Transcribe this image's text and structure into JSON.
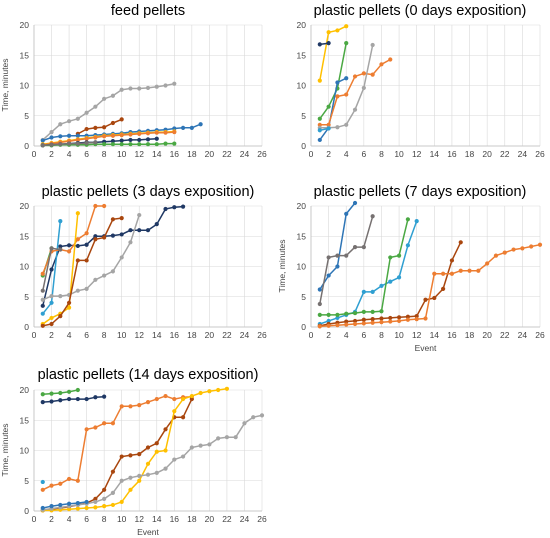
{
  "colors": {
    "gray": "#a5a5a5",
    "yellow": "#ffc000",
    "blue": "#2e75b6",
    "green": "#4aa843",
    "navy": "#1f3864",
    "orange": "#ed7d31",
    "brown": "#a9460e",
    "lightblue": "#2f9fd1",
    "darkgray": "#767171"
  },
  "chart_data": [
    {
      "type": "line",
      "title": "feed pellets",
      "xlabel": "",
      "ylabel": "Time, minutes",
      "xlim": [
        0,
        26
      ],
      "ylim": [
        0,
        20
      ],
      "xticks": [
        0,
        2,
        4,
        6,
        8,
        10,
        12,
        14,
        16,
        18,
        20,
        22,
        24,
        26
      ],
      "yticks": [
        0,
        5,
        10,
        15,
        20
      ],
      "series": [
        {
          "color": "gray",
          "x": [
            1,
            2,
            3,
            4,
            5,
            6,
            7,
            8,
            9,
            10,
            11,
            12,
            13,
            14,
            15,
            16
          ],
          "y": [
            1.0,
            2.3,
            3.6,
            4.1,
            4.5,
            5.5,
            6.5,
            7.8,
            8.3,
            9.3,
            9.5,
            9.5,
            9.6,
            9.8,
            10.0,
            10.3
          ]
        },
        {
          "color": "brown",
          "x": [
            5,
            6,
            7,
            8,
            9,
            10
          ],
          "y": [
            2.0,
            2.8,
            3.0,
            3.1,
            3.8,
            4.4
          ]
        },
        {
          "color": "blue",
          "x": [
            1,
            2,
            3,
            4,
            5,
            6,
            7,
            8,
            9,
            10,
            11,
            12,
            13,
            14,
            15,
            16,
            17,
            18,
            19
          ],
          "y": [
            0.9,
            1.4,
            1.6,
            1.7,
            1.7,
            1.7,
            1.8,
            1.9,
            2.0,
            2.1,
            2.3,
            2.4,
            2.5,
            2.6,
            2.7,
            2.9,
            3.0,
            3.0,
            3.6
          ]
        },
        {
          "color": "yellow",
          "x": [
            1,
            2,
            3,
            4,
            5,
            6,
            7,
            8,
            9,
            10,
            11,
            12,
            13,
            14,
            15,
            16
          ],
          "y": [
            0.3,
            0.5,
            0.7,
            0.9,
            1.1,
            1.3,
            1.5,
            1.7,
            1.8,
            1.9,
            2.0,
            2.1,
            2.2,
            2.3,
            2.3,
            2.4
          ]
        },
        {
          "color": "orange",
          "x": [
            1,
            2,
            3,
            4,
            5,
            6,
            7,
            8,
            9,
            10,
            11,
            12,
            13,
            14,
            15,
            16
          ],
          "y": [
            0.2,
            0.4,
            0.6,
            0.8,
            1.0,
            1.2,
            1.4,
            1.6,
            1.7,
            1.8,
            1.9,
            2.0,
            2.1,
            2.2,
            2.2,
            2.3
          ]
        },
        {
          "color": "navy",
          "x": [
            1,
            2,
            3,
            4,
            5,
            6,
            7,
            8,
            9,
            10,
            11,
            12,
            13,
            14
          ],
          "y": [
            0.1,
            0.2,
            0.3,
            0.4,
            0.5,
            0.6,
            0.6,
            0.7,
            0.8,
            0.9,
            1.0,
            1.0,
            1.1,
            1.2
          ]
        },
        {
          "color": "green",
          "x": [
            1,
            2,
            3,
            4,
            5,
            6,
            7,
            8,
            9,
            10,
            11,
            12,
            13,
            14,
            15,
            16
          ],
          "y": [
            0.1,
            0.1,
            0.2,
            0.2,
            0.2,
            0.2,
            0.3,
            0.3,
            0.3,
            0.3,
            0.3,
            0.3,
            0.3,
            0.3,
            0.4,
            0.4
          ]
        },
        {
          "color": "darkgray",
          "x": [
            1,
            2,
            3,
            4,
            5,
            6,
            7
          ],
          "y": [
            0.1,
            0.2,
            0.3,
            0.4,
            0.4,
            0.5,
            0.6
          ]
        }
      ]
    },
    {
      "type": "line",
      "title": "plastic pellets (0 days exposition)",
      "xlabel": "",
      "ylabel": "",
      "xlim": [
        0,
        26
      ],
      "ylim": [
        0,
        20
      ],
      "xticks": [
        0,
        2,
        4,
        6,
        8,
        10,
        12,
        14,
        16,
        18,
        20,
        22,
        24,
        26
      ],
      "yticks": [
        0,
        5,
        10,
        15,
        20
      ],
      "series": [
        {
          "color": "yellow",
          "x": [
            1,
            2,
            3,
            4
          ],
          "y": [
            10.8,
            18.8,
            19.1,
            19.8
          ]
        },
        {
          "color": "navy",
          "x": [
            1,
            2
          ],
          "y": [
            16.8,
            17.0
          ]
        },
        {
          "color": "green",
          "x": [
            1,
            2,
            3,
            4
          ],
          "y": [
            4.5,
            6.5,
            9.5,
            17.0
          ]
        },
        {
          "color": "blue",
          "x": [
            1,
            2,
            3,
            4
          ],
          "y": [
            1.0,
            3.0,
            10.5,
            11.2
          ]
        },
        {
          "color": "orange",
          "x": [
            1,
            2,
            3,
            4,
            5,
            6,
            7,
            8,
            9
          ],
          "y": [
            3.5,
            3.5,
            8.2,
            8.5,
            11.5,
            12.0,
            11.8,
            13.5,
            14.3
          ]
        },
        {
          "color": "gray",
          "x": [
            1,
            2,
            3,
            4,
            5,
            6,
            7
          ],
          "y": [
            3.0,
            3.0,
            3.1,
            3.5,
            6.0,
            9.6,
            16.7
          ]
        },
        {
          "color": "lightblue",
          "x": [
            1,
            2
          ],
          "y": [
            2.6,
            2.9
          ]
        }
      ]
    },
    {
      "type": "line",
      "title": "plastic pellets (3 days exposition)",
      "xlabel": "",
      "ylabel": "",
      "xlim": [
        0,
        26
      ],
      "ylim": [
        0,
        20
      ],
      "xticks": [
        0,
        2,
        4,
        6,
        8,
        10,
        12,
        14,
        16,
        18,
        20,
        22,
        24,
        26
      ],
      "yticks": [
        0,
        5,
        10,
        15,
        20
      ],
      "series": [
        {
          "color": "navy",
          "x": [
            1,
            2,
            3,
            4,
            5,
            6,
            7,
            8,
            9,
            10,
            11,
            12,
            13,
            14,
            15,
            16,
            17
          ],
          "y": [
            3.5,
            9.5,
            13.3,
            13.5,
            13.4,
            13.6,
            15.0,
            15.0,
            15.1,
            15.3,
            16.0,
            16.0,
            16.0,
            17.0,
            19.5,
            19.8,
            19.9
          ]
        },
        {
          "color": "green",
          "x": [
            1,
            2
          ],
          "y": [
            8.5,
            13.0
          ]
        },
        {
          "color": "lightblue",
          "x": [
            1,
            2,
            3
          ],
          "y": [
            2.2,
            4.0,
            17.5
          ]
        },
        {
          "color": "orange",
          "x": [
            1,
            2,
            3,
            4,
            5,
            6,
            7,
            8
          ],
          "y": [
            8.8,
            12.5,
            12.8,
            12.5,
            14.5,
            15.5,
            20.0,
            20.0
          ]
        },
        {
          "color": "yellow",
          "x": [
            1,
            2,
            3,
            4,
            5
          ],
          "y": [
            0.5,
            1.5,
            2.2,
            3.2,
            18.8
          ]
        },
        {
          "color": "gray",
          "x": [
            1,
            2,
            3,
            4,
            5,
            6,
            7,
            8,
            9,
            10,
            11,
            12
          ],
          "y": [
            4.5,
            5.1,
            5.1,
            5.3,
            6.0,
            6.3,
            7.8,
            8.5,
            9.2,
            11.5,
            14.0,
            18.5
          ]
        },
        {
          "color": "brown",
          "x": [
            1,
            2,
            3,
            4,
            5,
            6,
            7,
            8,
            9,
            10
          ],
          "y": [
            0.2,
            0.5,
            1.8,
            4.0,
            11.0,
            11.0,
            14.5,
            14.8,
            17.8,
            18.0
          ]
        },
        {
          "color": "darkgray",
          "x": [
            1,
            2,
            3
          ],
          "y": [
            6.0,
            13.0,
            12.8
          ]
        }
      ]
    },
    {
      "type": "line",
      "title": "plastic pellets (7 days exposition)",
      "xlabel": "Event",
      "ylabel": "Time, minutes",
      "xlim": [
        0,
        26
      ],
      "ylim": [
        0,
        20
      ],
      "xticks": [
        0,
        2,
        4,
        6,
        8,
        10,
        12,
        14,
        16,
        18,
        20,
        22,
        24,
        26
      ],
      "yticks": [
        0,
        5,
        10,
        15,
        20
      ],
      "series": [
        {
          "color": "blue",
          "x": [
            1,
            2,
            3,
            4,
            5
          ],
          "y": [
            6.2,
            8.5,
            10.0,
            18.7,
            20.5
          ]
        },
        {
          "color": "darkgray",
          "x": [
            1,
            2,
            3,
            4,
            5,
            6,
            7
          ],
          "y": [
            3.8,
            11.5,
            11.8,
            11.8,
            13.2,
            13.2,
            18.3
          ]
        },
        {
          "color": "lightblue",
          "x": [
            1,
            2,
            3,
            4,
            5,
            6,
            7,
            8,
            9,
            10,
            11,
            12
          ],
          "y": [
            0.5,
            1.0,
            1.5,
            2.0,
            2.5,
            5.8,
            5.8,
            6.8,
            7.5,
            8.2,
            13.5,
            17.5
          ]
        },
        {
          "color": "green",
          "x": [
            1,
            2,
            3,
            4,
            5,
            6,
            7,
            8,
            9,
            10,
            11
          ],
          "y": [
            2.0,
            2.0,
            2.0,
            2.2,
            2.3,
            2.5,
            2.5,
            2.6,
            11.5,
            11.8,
            17.8
          ]
        },
        {
          "color": "brown",
          "x": [
            1,
            2,
            3,
            4,
            5,
            6,
            7,
            8,
            9,
            10,
            11,
            12,
            13,
            14,
            15,
            16,
            17
          ],
          "y": [
            0.2,
            0.5,
            0.7,
            0.9,
            1.0,
            1.2,
            1.3,
            1.4,
            1.5,
            1.6,
            1.7,
            1.8,
            4.5,
            4.8,
            6.3,
            11.0,
            14.0
          ]
        },
        {
          "color": "orange",
          "x": [
            1,
            2,
            3,
            4,
            5,
            6,
            7,
            8,
            9,
            10,
            11,
            12,
            13,
            14,
            15,
            16,
            17,
            18,
            19,
            20,
            21,
            22,
            23,
            24,
            25,
            26
          ],
          "y": [
            0.1,
            0.2,
            0.3,
            0.4,
            0.5,
            0.6,
            0.7,
            0.8,
            0.9,
            1.0,
            1.2,
            1.3,
            1.4,
            8.8,
            8.8,
            8.8,
            9.3,
            9.3,
            9.3,
            10.5,
            11.8,
            12.3,
            12.8,
            13.0,
            13.3,
            13.6
          ]
        }
      ]
    },
    {
      "type": "line",
      "title": "plastic pellets (14 days exposition)",
      "xlabel": "Event",
      "ylabel": "Time, minutes",
      "xlim": [
        0,
        26
      ],
      "ylim": [
        0,
        20
      ],
      "xticks": [
        0,
        2,
        4,
        6,
        8,
        10,
        12,
        14,
        16,
        18,
        20,
        22,
        24,
        26
      ],
      "yticks": [
        0,
        5,
        10,
        15,
        20
      ],
      "series": [
        {
          "color": "green",
          "x": [
            1,
            2,
            3,
            4,
            5
          ],
          "y": [
            19.3,
            19.4,
            19.5,
            19.7,
            20.0
          ]
        },
        {
          "color": "navy",
          "x": [
            1,
            2,
            3,
            4,
            5,
            6,
            7,
            8
          ],
          "y": [
            18.0,
            18.1,
            18.3,
            18.5,
            18.5,
            18.5,
            18.8,
            18.9
          ]
        },
        {
          "color": "orange",
          "x": [
            1,
            2,
            3,
            4,
            5,
            6,
            7,
            8,
            9,
            10,
            11,
            12,
            13,
            14,
            15,
            16,
            17,
            18
          ],
          "y": [
            3.5,
            4.2,
            4.5,
            5.3,
            5.0,
            13.5,
            13.8,
            14.5,
            14.5,
            17.3,
            17.3,
            17.5,
            18.0,
            18.5,
            19.0,
            18.5,
            18.8,
            18.9
          ]
        },
        {
          "color": "lightblue",
          "x": [
            1
          ],
          "y": [
            4.8
          ]
        },
        {
          "color": "brown",
          "x": [
            1,
            2,
            3,
            4,
            5,
            6,
            7,
            8,
            9,
            10,
            11,
            12,
            13,
            14,
            15,
            16,
            17,
            18
          ],
          "y": [
            0.1,
            0.3,
            0.5,
            0.7,
            1.0,
            1.3,
            2.0,
            3.5,
            6.5,
            9.0,
            9.2,
            9.4,
            10.5,
            11.2,
            13.5,
            15.5,
            15.5,
            18.5
          ]
        },
        {
          "color": "yellow",
          "x": [
            1,
            2,
            3,
            4,
            5,
            6,
            7,
            8,
            9,
            10,
            11,
            12,
            13,
            14,
            15,
            16,
            17,
            18,
            19,
            20,
            21,
            22
          ],
          "y": [
            0.1,
            0.1,
            0.2,
            0.3,
            0.4,
            0.5,
            0.6,
            0.8,
            1.0,
            1.5,
            3.5,
            5.0,
            7.8,
            9.8,
            10.0,
            16.5,
            18.5,
            19.0,
            19.5,
            19.8,
            20.0,
            20.2
          ]
        },
        {
          "color": "gray",
          "x": [
            1,
            2,
            3,
            4,
            5,
            6,
            7,
            8,
            9,
            10,
            11,
            12,
            13,
            14,
            15,
            16,
            17,
            18,
            19,
            20,
            21,
            22,
            23,
            24,
            25,
            26
          ],
          "y": [
            0.2,
            0.4,
            0.6,
            0.8,
            1.0,
            1.2,
            1.5,
            2.0,
            3.0,
            5.0,
            5.5,
            5.8,
            6.0,
            6.3,
            7.0,
            8.5,
            9.0,
            10.5,
            10.8,
            11.0,
            12.0,
            12.2,
            12.2,
            14.5,
            15.5,
            15.8
          ]
        },
        {
          "color": "blue",
          "x": [
            1,
            2,
            3,
            4,
            5,
            6
          ],
          "y": [
            0.5,
            0.8,
            1.0,
            1.2,
            1.3,
            1.5
          ]
        }
      ]
    }
  ]
}
